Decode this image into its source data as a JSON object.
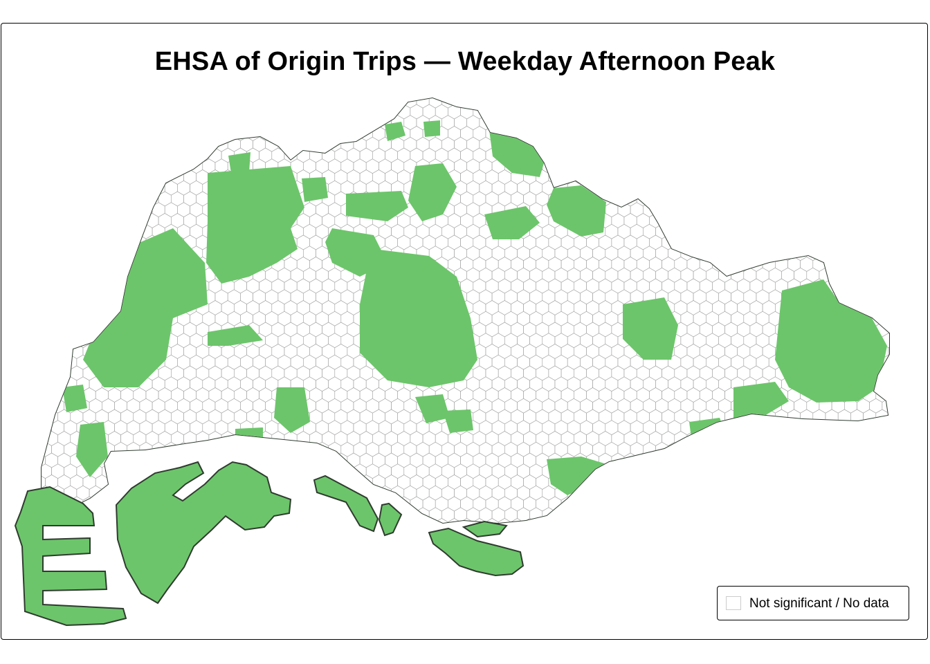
{
  "title": "EHSA of Origin Trips — Weekday Afternoon Peak",
  "legend": {
    "items": [
      {
        "label": "Not significant / No data",
        "color": "#ffffff"
      }
    ]
  },
  "colors": {
    "land": "#6cc56a",
    "land_outline": "#2f3b2f",
    "hex_fill": "#ffffff",
    "hex_stroke": "#9a9a9a",
    "frame": "#000000"
  }
}
